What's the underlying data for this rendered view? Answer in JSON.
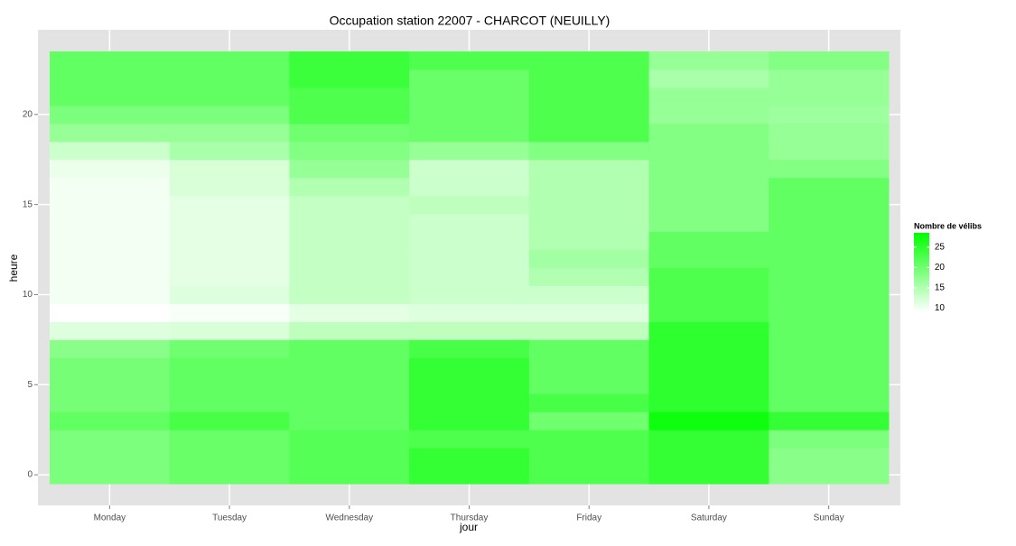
{
  "chart_data": {
    "type": "heatmap",
    "title": "Occupation station 22007 - CHARCOT (NEUILLY)",
    "xlabel": "jour",
    "ylabel": "heure",
    "categories": [
      "Monday",
      "Tuesday",
      "Wednesday",
      "Thursday",
      "Friday",
      "Saturday",
      "Sunday"
    ],
    "y": [
      0,
      1,
      2,
      3,
      4,
      5,
      6,
      7,
      8,
      9,
      10,
      11,
      12,
      13,
      14,
      15,
      16,
      17,
      18,
      19,
      20,
      21,
      22,
      23
    ],
    "values": [
      [
        19,
        19,
        19,
        21,
        19.5,
        19.5,
        19.5,
        18,
        11.5,
        9,
        10,
        10,
        10,
        10,
        10,
        10,
        10,
        10.5,
        13,
        17,
        19,
        21,
        21,
        21
      ],
      [
        20.5,
        20.5,
        20.5,
        23,
        21,
        21,
        21,
        20,
        12,
        9.5,
        11.5,
        11,
        11,
        11,
        11,
        11,
        12,
        12,
        15.5,
        17,
        19,
        21,
        21,
        21
      ],
      [
        22,
        22,
        22,
        21,
        21,
        21,
        21,
        21,
        14,
        11,
        13.5,
        13.5,
        13.5,
        13.5,
        13.5,
        13.5,
        15,
        17,
        18.5,
        20,
        22.5,
        22.5,
        24,
        24
      ],
      [
        24.5,
        24.5,
        22.5,
        24.5,
        24.5,
        24.5,
        24.5,
        23,
        14,
        11.5,
        13,
        13,
        13,
        13,
        13,
        14,
        13,
        13,
        17,
        20.5,
        20.5,
        20.5,
        20.5,
        22.5
      ],
      [
        22.5,
        22.5,
        22.5,
        20,
        23,
        21,
        21,
        21,
        14,
        11.5,
        13,
        15,
        16,
        15,
        15,
        15,
        15,
        15,
        18.5,
        22.5,
        22.5,
        22.5,
        22.5,
        22.5
      ],
      [
        24.5,
        24.5,
        24.5,
        27.5,
        25,
        25,
        25,
        25,
        25,
        22.5,
        22.5,
        22.5,
        21,
        21,
        18.5,
        18.5,
        18.5,
        18.5,
        18.5,
        18.5,
        17,
        17,
        15.5,
        17
      ],
      [
        18,
        18,
        19,
        24.5,
        21,
        21,
        21,
        21,
        21,
        21,
        21,
        21,
        21,
        21,
        21,
        21,
        21,
        18.5,
        17,
        17,
        16.5,
        17,
        17,
        18.5
      ]
    ],
    "ylim": [
      -1.7,
      24.7
    ],
    "yticks": [
      0,
      5,
      10,
      15,
      20
    ],
    "legend_title": "Nombre de vélibs",
    "colorlim": [
      9,
      28.5
    ],
    "colorticks": [
      10,
      15,
      20,
      25
    ],
    "low_color": "#ffffff",
    "high_color": "#00ff00",
    "grid": true
  }
}
